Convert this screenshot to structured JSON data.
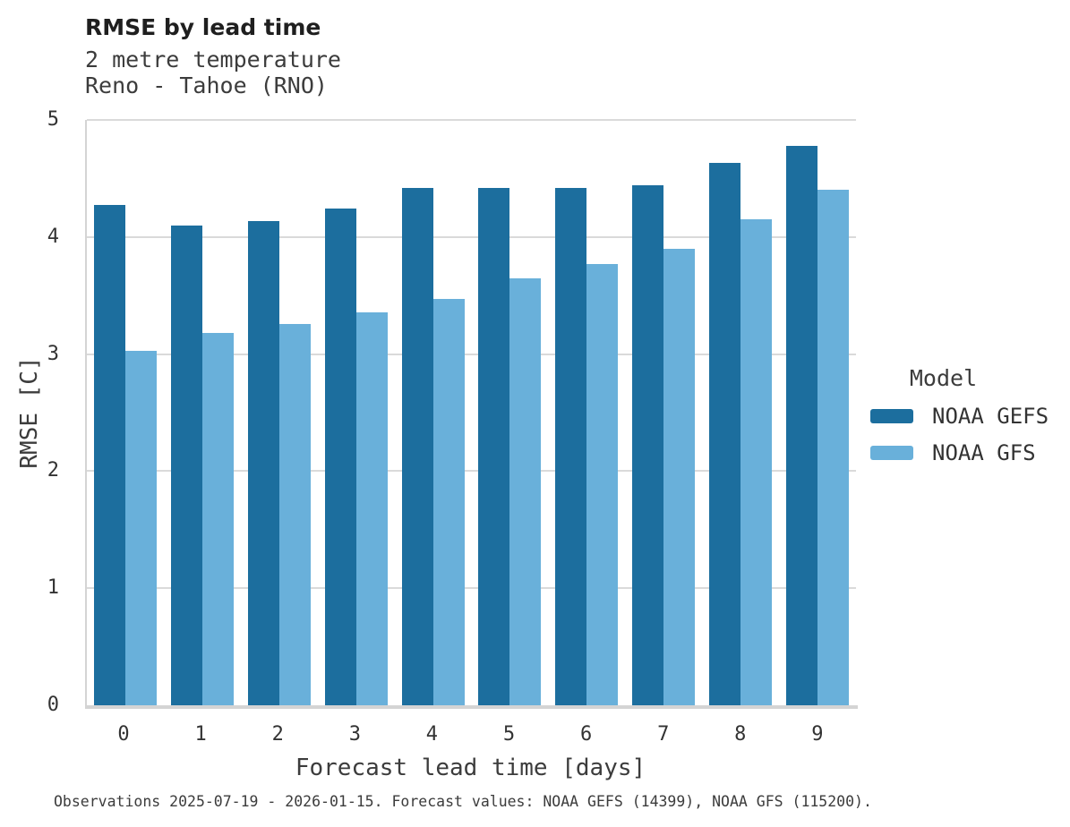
{
  "chart_data": {
    "type": "bar",
    "title": "RMSE by lead time",
    "subtitle": [
      "2 metre temperature",
      "Reno - Tahoe (RNO)"
    ],
    "categories": [
      "0",
      "1",
      "2",
      "3",
      "4",
      "5",
      "6",
      "7",
      "8",
      "9"
    ],
    "series": [
      {
        "name": "NOAA GEFS",
        "color": "#1C6E9E",
        "values": [
          4.27,
          4.1,
          4.14,
          4.24,
          4.42,
          4.42,
          4.42,
          4.44,
          4.63,
          4.78
        ]
      },
      {
        "name": "NOAA GFS",
        "color": "#69B0DA",
        "values": [
          3.03,
          3.18,
          3.26,
          3.36,
          3.47,
          3.65,
          3.77,
          3.9,
          4.15,
          4.4
        ]
      }
    ],
    "xlabel": "Forecast lead time [days]",
    "ylabel": "RMSE [C]",
    "ylim": [
      0,
      5
    ],
    "yticks": [
      0,
      1,
      2,
      3,
      4,
      5
    ],
    "grid": true,
    "legend_title": "Model",
    "legend_position": "right",
    "gridline_color": "#dadada",
    "axis_color": "#d4d4d4"
  },
  "footer": {
    "note": "Observations 2025-07-19 - 2026-01-15. Forecast values: NOAA GEFS (14399), NOAA GFS (115200)."
  }
}
